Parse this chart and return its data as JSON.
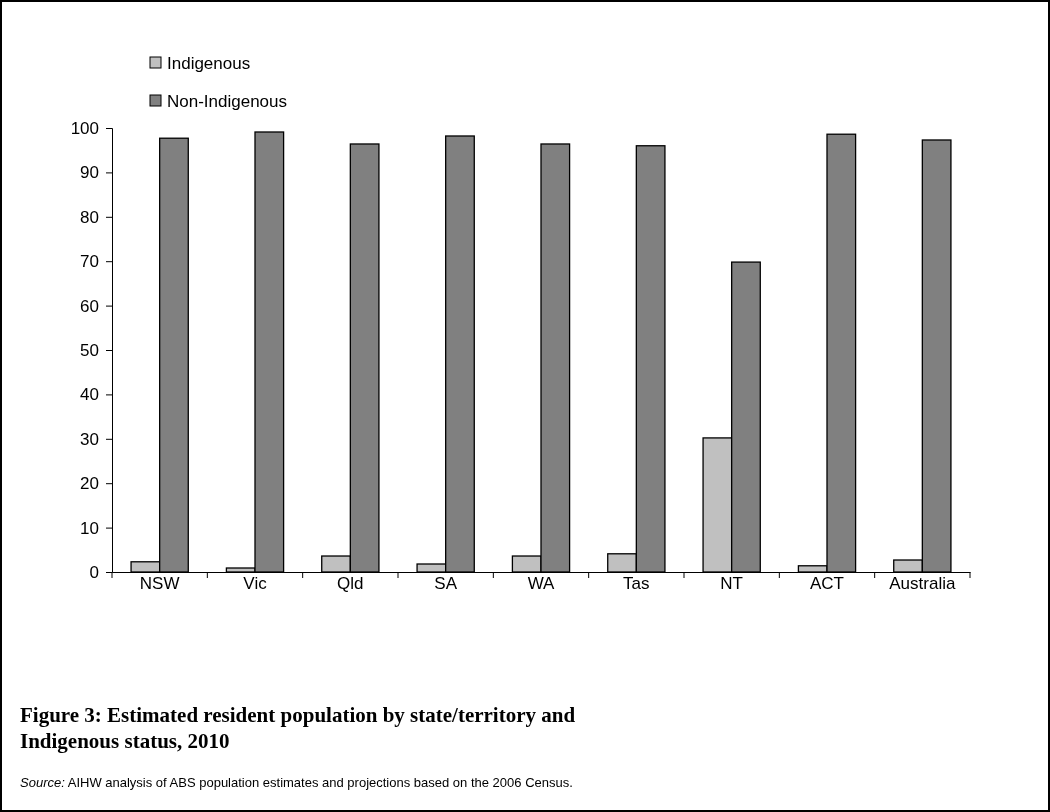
{
  "chart_data": {
    "type": "bar",
    "title": "Figure 3: Estimated resident population by state/territory and Indigenous status, 2010",
    "categories": [
      "NSW",
      "Vic",
      "Qld",
      "SA",
      "WA",
      "Tas",
      "NT",
      "ACT",
      "Australia"
    ],
    "series": [
      {
        "name": "Indigenous",
        "color": "#c0c0c0",
        "values": [
          2.3,
          0.9,
          3.6,
          1.8,
          3.6,
          4.1,
          30.2,
          1.4,
          2.7
        ]
      },
      {
        "name": "Non-Indigenous",
        "color": "#808080",
        "values": [
          97.7,
          99.1,
          96.4,
          98.2,
          96.4,
          96.0,
          69.8,
          98.6,
          97.3
        ]
      }
    ],
    "ylim": [
      0,
      100
    ],
    "yticks": [
      0,
      10,
      20,
      30,
      40,
      50,
      60,
      70,
      80,
      90,
      100
    ],
    "grid": false,
    "legend": "top left",
    "annotations": [
      "Source: AIHW analysis of ABS population estimates and projections based on the 2006 Census."
    ]
  }
}
